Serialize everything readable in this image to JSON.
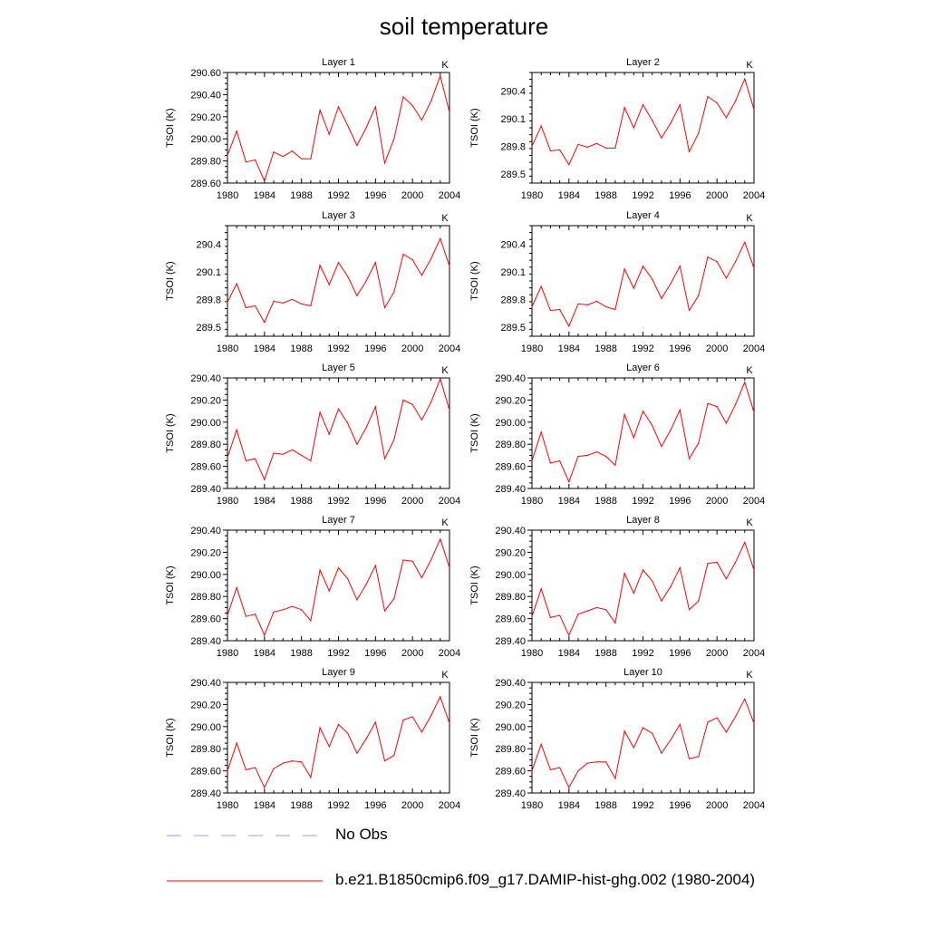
{
  "title": "soil temperature",
  "legend": [
    {
      "label": "No Obs",
      "color": "#9999ff",
      "dash": "dashed"
    },
    {
      "label": "b.e21.B1850cmip6.f09_g17.DAMIP-hist-ghg.002 (1980-2004)",
      "color": "#ff0000",
      "dash": "solid"
    }
  ],
  "chart_data": [
    {
      "type": "line",
      "title": "Layer 1",
      "unit_label": "K",
      "ylabel": "TSOI  (K)",
      "xlim": [
        1980,
        2004
      ],
      "ylim": [
        289.6,
        290.6
      ],
      "xticks": [
        "1980",
        "1984",
        "1988",
        "1992",
        "1996",
        "2000",
        "2004"
      ],
      "yticks": [
        "289.60",
        "289.80",
        "290.00",
        "290.20",
        "290.40",
        "290.60"
      ],
      "x": [
        1980,
        1981,
        1982,
        1983,
        1984,
        1985,
        1986,
        1987,
        1988,
        1989,
        1990,
        1991,
        1992,
        1993,
        1994,
        1995,
        1996,
        1997,
        1998,
        1999,
        2000,
        2001,
        2002,
        2003,
        2004
      ],
      "series": [
        {
          "color": "#ff0000",
          "values": [
            289.85,
            290.07,
            289.79,
            289.81,
            289.62,
            289.88,
            289.84,
            289.89,
            289.82,
            289.82,
            290.26,
            290.04,
            290.29,
            290.12,
            289.94,
            290.1,
            290.29,
            289.78,
            290.0,
            290.38,
            290.3,
            290.17,
            290.34,
            290.57,
            290.24
          ]
        }
      ]
    },
    {
      "type": "line",
      "title": "Layer 2",
      "unit_label": "K",
      "ylabel": "TSOI  (K)",
      "xlim": [
        1980,
        2004
      ],
      "ylim": [
        289.4,
        290.6
      ],
      "xticks": [
        "1980",
        "1984",
        "1988",
        "1992",
        "1996",
        "2000",
        "2004"
      ],
      "yticks": [
        "289.5",
        "289.8",
        "290.1",
        "290.4"
      ],
      "x": [
        1980,
        1981,
        1982,
        1983,
        1984,
        1985,
        1986,
        1987,
        1988,
        1989,
        1990,
        1991,
        1992,
        1993,
        1994,
        1995,
        1996,
        1997,
        1998,
        1999,
        2000,
        2001,
        2002,
        2003,
        2004
      ],
      "series": [
        {
          "color": "#ff0000",
          "values": [
            289.8,
            290.02,
            289.75,
            289.76,
            289.6,
            289.82,
            289.79,
            289.83,
            289.78,
            289.78,
            290.22,
            290.0,
            290.25,
            290.08,
            289.89,
            290.05,
            290.25,
            289.74,
            289.94,
            290.34,
            290.27,
            290.11,
            290.29,
            290.53,
            290.2
          ]
        }
      ]
    },
    {
      "type": "line",
      "title": "Layer 3",
      "unit_label": "K",
      "ylabel": "TSOI  (K)",
      "xlim": [
        1980,
        2004
      ],
      "ylim": [
        289.4,
        290.6
      ],
      "xticks": [
        "1980",
        "1984",
        "1988",
        "1992",
        "1996",
        "2000",
        "2004"
      ],
      "yticks": [
        "289.5",
        "289.8",
        "290.1",
        "290.4"
      ],
      "x": [
        1980,
        1981,
        1982,
        1983,
        1984,
        1985,
        1986,
        1987,
        1988,
        1989,
        1990,
        1991,
        1992,
        1993,
        1994,
        1995,
        1996,
        1997,
        1998,
        1999,
        2000,
        2001,
        2002,
        2003,
        2004
      ],
      "series": [
        {
          "color": "#ff0000",
          "values": [
            289.77,
            289.97,
            289.71,
            289.73,
            289.55,
            289.78,
            289.76,
            289.8,
            289.75,
            289.73,
            290.17,
            289.96,
            290.2,
            290.05,
            289.84,
            290.0,
            290.2,
            289.71,
            289.88,
            290.29,
            290.23,
            290.06,
            290.24,
            290.46,
            290.16
          ]
        }
      ]
    },
    {
      "type": "line",
      "title": "Layer 4",
      "unit_label": "K",
      "ylabel": "TSOI  (K)",
      "xlim": [
        1980,
        2004
      ],
      "ylim": [
        289.4,
        290.6
      ],
      "xticks": [
        "1980",
        "1984",
        "1988",
        "1992",
        "1996",
        "2000",
        "2004"
      ],
      "yticks": [
        "289.5",
        "289.8",
        "290.1",
        "290.4"
      ],
      "x": [
        1980,
        1981,
        1982,
        1983,
        1984,
        1985,
        1986,
        1987,
        1988,
        1989,
        1990,
        1991,
        1992,
        1993,
        1994,
        1995,
        1996,
        1997,
        1998,
        1999,
        2000,
        2001,
        2002,
        2003,
        2004
      ],
      "series": [
        {
          "color": "#ff0000",
          "values": [
            289.72,
            289.94,
            289.68,
            289.69,
            289.51,
            289.75,
            289.74,
            289.78,
            289.72,
            289.69,
            290.13,
            289.92,
            290.16,
            290.02,
            289.81,
            289.97,
            290.16,
            289.68,
            289.84,
            290.26,
            290.21,
            290.03,
            290.21,
            290.42,
            290.14
          ]
        }
      ]
    },
    {
      "type": "line",
      "title": "Layer 5",
      "unit_label": "K",
      "ylabel": "TSOI  (K)",
      "xlim": [
        1980,
        2004
      ],
      "ylim": [
        289.4,
        290.4
      ],
      "xticks": [
        "1980",
        "1984",
        "1988",
        "1992",
        "1996",
        "2000",
        "2004"
      ],
      "yticks": [
        "289.40",
        "289.60",
        "289.80",
        "290.00",
        "290.20",
        "290.40"
      ],
      "x": [
        1980,
        1981,
        1982,
        1983,
        1984,
        1985,
        1986,
        1987,
        1988,
        1989,
        1990,
        1991,
        1992,
        1993,
        1994,
        1995,
        1996,
        1997,
        1998,
        1999,
        2000,
        2001,
        2002,
        2003,
        2004
      ],
      "series": [
        {
          "color": "#ff0000",
          "values": [
            289.68,
            289.93,
            289.65,
            289.67,
            289.48,
            289.72,
            289.71,
            289.75,
            289.7,
            289.65,
            290.09,
            289.89,
            290.12,
            289.99,
            289.8,
            289.95,
            290.14,
            289.67,
            289.84,
            290.2,
            290.16,
            290.02,
            290.18,
            290.39,
            290.11
          ]
        }
      ]
    },
    {
      "type": "line",
      "title": "Layer 6",
      "unit_label": "K",
      "ylabel": "TSOI  (K)",
      "xlim": [
        1980,
        2004
      ],
      "ylim": [
        289.4,
        290.4
      ],
      "xticks": [
        "1980",
        "1984",
        "1988",
        "1992",
        "1996",
        "2000",
        "2004"
      ],
      "yticks": [
        "289.40",
        "289.60",
        "289.80",
        "290.00",
        "290.20",
        "290.40"
      ],
      "x": [
        1980,
        1981,
        1982,
        1983,
        1984,
        1985,
        1986,
        1987,
        1988,
        1989,
        1990,
        1991,
        1992,
        1993,
        1994,
        1995,
        1996,
        1997,
        1998,
        1999,
        2000,
        2001,
        2002,
        2003,
        2004
      ],
      "series": [
        {
          "color": "#ff0000",
          "values": [
            289.65,
            289.91,
            289.63,
            289.65,
            289.46,
            289.69,
            289.7,
            289.73,
            289.69,
            289.61,
            290.07,
            289.86,
            290.1,
            289.97,
            289.78,
            289.93,
            290.11,
            289.67,
            289.81,
            290.17,
            290.14,
            289.99,
            290.16,
            290.36,
            290.09
          ]
        }
      ]
    },
    {
      "type": "line",
      "title": "Layer 7",
      "unit_label": "K",
      "ylabel": "TSOI  (K)",
      "xlim": [
        1980,
        2004
      ],
      "ylim": [
        289.4,
        290.4
      ],
      "xticks": [
        "1980",
        "1984",
        "1988",
        "1992",
        "1996",
        "2000",
        "2004"
      ],
      "yticks": [
        "289.40",
        "289.60",
        "289.80",
        "290.00",
        "290.20",
        "290.40"
      ],
      "x": [
        1980,
        1981,
        1982,
        1983,
        1984,
        1985,
        1986,
        1987,
        1988,
        1989,
        1990,
        1991,
        1992,
        1993,
        1994,
        1995,
        1996,
        1997,
        1998,
        1999,
        2000,
        2001,
        2002,
        2003,
        2004
      ],
      "series": [
        {
          "color": "#ff0000",
          "values": [
            289.63,
            289.88,
            289.62,
            289.64,
            289.45,
            289.66,
            289.68,
            289.71,
            289.68,
            289.58,
            290.04,
            289.85,
            290.06,
            289.96,
            289.77,
            289.91,
            290.08,
            289.67,
            289.78,
            290.13,
            290.12,
            289.97,
            290.13,
            290.32,
            290.06
          ]
        }
      ]
    },
    {
      "type": "line",
      "title": "Layer 8",
      "unit_label": "K",
      "ylabel": "TSOI  (K)",
      "xlim": [
        1980,
        2004
      ],
      "ylim": [
        289.4,
        290.4
      ],
      "xticks": [
        "1980",
        "1984",
        "1988",
        "1992",
        "1996",
        "2000",
        "2004"
      ],
      "yticks": [
        "289.40",
        "289.60",
        "289.80",
        "290.00",
        "290.20",
        "290.40"
      ],
      "x": [
        1980,
        1981,
        1982,
        1983,
        1984,
        1985,
        1986,
        1987,
        1988,
        1989,
        1990,
        1991,
        1992,
        1993,
        1994,
        1995,
        1996,
        1997,
        1998,
        1999,
        2000,
        2001,
        2002,
        2003,
        2004
      ],
      "series": [
        {
          "color": "#ff0000",
          "values": [
            289.62,
            289.87,
            289.61,
            289.63,
            289.45,
            289.64,
            289.67,
            289.7,
            289.68,
            289.56,
            290.01,
            289.83,
            290.04,
            289.94,
            289.76,
            289.89,
            290.06,
            289.68,
            289.76,
            290.1,
            290.11,
            289.96,
            290.11,
            290.29,
            290.04
          ]
        }
      ]
    },
    {
      "type": "line",
      "title": "Layer 9",
      "unit_label": "K",
      "ylabel": "TSOI  (K)",
      "xlim": [
        1980,
        2004
      ],
      "ylim": [
        289.4,
        290.4
      ],
      "xticks": [
        "1980",
        "1984",
        "1988",
        "1992",
        "1996",
        "2000",
        "2004"
      ],
      "yticks": [
        "289.40",
        "289.60",
        "289.80",
        "290.00",
        "290.20",
        "290.40"
      ],
      "x": [
        1980,
        1981,
        1982,
        1983,
        1984,
        1985,
        1986,
        1987,
        1988,
        1989,
        1990,
        1991,
        1992,
        1993,
        1994,
        1995,
        1996,
        1997,
        1998,
        1999,
        2000,
        2001,
        2002,
        2003,
        2004
      ],
      "series": [
        {
          "color": "#ff0000",
          "values": [
            289.6,
            289.85,
            289.61,
            289.63,
            289.45,
            289.62,
            289.67,
            289.69,
            289.68,
            289.54,
            289.99,
            289.82,
            290.02,
            289.94,
            289.76,
            289.89,
            290.04,
            289.69,
            289.74,
            290.06,
            290.09,
            289.95,
            290.1,
            290.27,
            290.03
          ]
        }
      ]
    },
    {
      "type": "line",
      "title": "Layer 10",
      "unit_label": "K",
      "ylabel": "TSOI  (K)",
      "xlim": [
        1980,
        2004
      ],
      "ylim": [
        289.4,
        290.4
      ],
      "xticks": [
        "1980",
        "1984",
        "1988",
        "1992",
        "1996",
        "2000",
        "2004"
      ],
      "yticks": [
        "289.40",
        "289.60",
        "289.80",
        "290.00",
        "290.20",
        "290.40"
      ],
      "x": [
        1980,
        1981,
        1982,
        1983,
        1984,
        1985,
        1986,
        1987,
        1988,
        1989,
        1990,
        1991,
        1992,
        1993,
        1994,
        1995,
        1996,
        1997,
        1998,
        1999,
        2000,
        2001,
        2002,
        2003,
        2004
      ],
      "series": [
        {
          "color": "#ff0000",
          "values": [
            289.6,
            289.84,
            289.61,
            289.63,
            289.45,
            289.6,
            289.67,
            289.68,
            289.68,
            289.53,
            289.96,
            289.81,
            289.99,
            289.94,
            289.76,
            289.88,
            290.02,
            289.71,
            289.73,
            290.04,
            290.08,
            289.95,
            290.09,
            290.25,
            290.03
          ]
        }
      ]
    }
  ]
}
